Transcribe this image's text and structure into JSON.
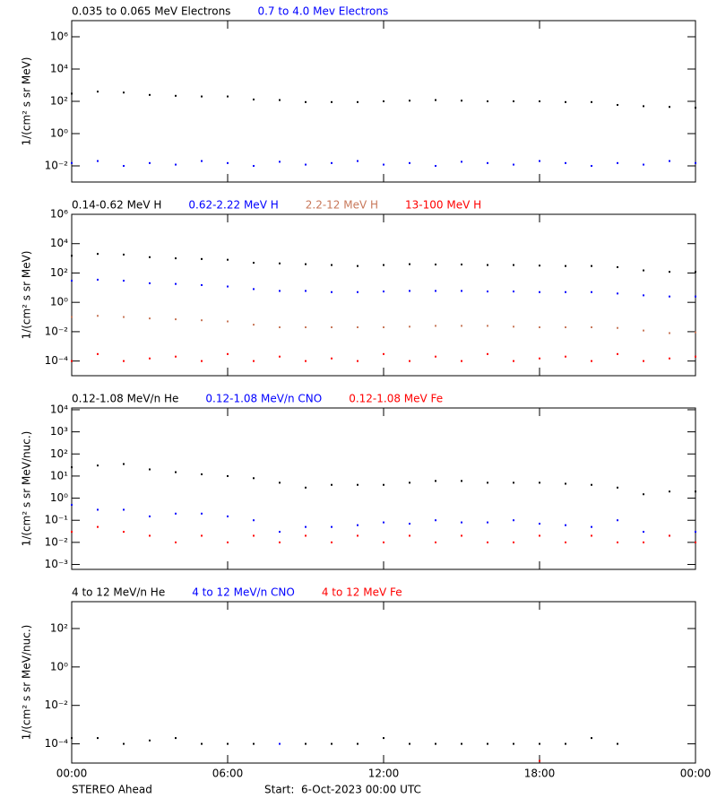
{
  "chart_data": [
    {
      "type": "scatter",
      "log_y": true,
      "ylabel": "1/(cm² s sr MeV)",
      "x": [
        0,
        1,
        2,
        3,
        4,
        5,
        6,
        7,
        8,
        9,
        10,
        11,
        12,
        13,
        14,
        15,
        16,
        17,
        18,
        19,
        20,
        21,
        22,
        23,
        24
      ],
      "xlim": [
        0,
        24
      ],
      "xticks": [
        0,
        6,
        12,
        18,
        24
      ],
      "ylim": [
        0.001,
        10000000
      ],
      "yticks": [
        {
          "value": 0.01,
          "label": "10⁻²"
        },
        {
          "value": 1,
          "label": "10⁰"
        },
        {
          "value": 100,
          "label": "10²"
        },
        {
          "value": 10000,
          "label": "10⁴"
        },
        {
          "value": 1000000,
          "label": "10⁶"
        }
      ],
      "series": [
        {
          "name": "0.035 to 0.065 MeV Electrons",
          "color": "#000000",
          "values": [
            300,
            400,
            350,
            250,
            220,
            200,
            200,
            130,
            120,
            90,
            90,
            90,
            100,
            110,
            120,
            110,
            100,
            100,
            100,
            90,
            90,
            60,
            50,
            45,
            40
          ]
        },
        {
          "name": "0.7 to 4.0 Mev Electrons",
          "color": "#0000ff",
          "values": [
            0.015,
            0.02,
            0.01,
            0.015,
            0.012,
            0.02,
            0.015,
            0.01,
            0.018,
            0.012,
            0.015,
            0.02,
            0.012,
            0.015,
            0.01,
            0.018,
            0.015,
            0.012,
            0.02,
            0.015,
            0.01,
            0.015,
            0.012,
            0.02,
            0.015
          ]
        }
      ]
    },
    {
      "type": "scatter",
      "log_y": true,
      "ylabel": "1/(cm² s sr MeV)",
      "x": [
        0,
        1,
        2,
        3,
        4,
        5,
        6,
        7,
        8,
        9,
        10,
        11,
        12,
        13,
        14,
        15,
        16,
        17,
        18,
        19,
        20,
        21,
        22,
        23,
        24
      ],
      "xlim": [
        0,
        24
      ],
      "xticks": [
        0,
        6,
        12,
        18,
        24
      ],
      "ylim": [
        1e-05,
        1000000
      ],
      "yticks": [
        {
          "value": 0.0001,
          "label": "10⁻⁴"
        },
        {
          "value": 0.01,
          "label": "10⁻²"
        },
        {
          "value": 1,
          "label": "10⁰"
        },
        {
          "value": 100,
          "label": "10²"
        },
        {
          "value": 10000,
          "label": "10⁴"
        },
        {
          "value": 1000000,
          "label": "10⁶"
        }
      ],
      "series": [
        {
          "name": "0.14-0.62 MeV H",
          "color": "#000000",
          "values": [
            1500,
            2000,
            1800,
            1200,
            1000,
            900,
            800,
            500,
            450,
            400,
            350,
            300,
            350,
            400,
            380,
            380,
            350,
            350,
            320,
            300,
            300,
            250,
            150,
            120,
            120
          ]
        },
        {
          "name": "0.62-2.22 MeV H",
          "color": "#0000ff",
          "values": [
            30,
            35,
            30,
            20,
            18,
            15,
            12,
            8,
            6,
            6,
            5,
            5,
            5.5,
            6,
            6,
            6,
            5.5,
            5.5,
            5,
            5,
            5,
            4,
            3,
            2.5,
            2.5
          ]
        },
        {
          "name": "2.2-12 MeV H",
          "color": "#c8785a",
          "values": [
            0.1,
            0.12,
            0.1,
            0.08,
            0.07,
            0.06,
            0.05,
            0.03,
            0.02,
            0.02,
            0.02,
            0.02,
            0.02,
            0.022,
            0.025,
            0.025,
            0.025,
            0.022,
            0.02,
            0.02,
            0.02,
            0.018,
            0.012,
            0.008,
            0.009
          ]
        },
        {
          "name": "13-100 MeV H",
          "color": "#ff0000",
          "values": [
            0.0001,
            0.0003,
            0.0001,
            0.00015,
            0.0002,
            0.0001,
            0.0003,
            0.0001,
            0.0002,
            0.0001,
            0.00015,
            0.0001,
            0.0003,
            0.0001,
            0.0002,
            0.0001,
            0.0003,
            0.0001,
            0.00015,
            0.0002,
            0.0001,
            0.0003,
            0.0001,
            0.00015,
            0.0002
          ]
        }
      ]
    },
    {
      "type": "scatter",
      "log_y": true,
      "ylabel": "1/(cm² s sr MeV/nuc.)",
      "x": [
        0,
        1,
        2,
        3,
        4,
        5,
        6,
        7,
        8,
        9,
        10,
        11,
        12,
        13,
        14,
        15,
        16,
        17,
        18,
        19,
        20,
        21,
        22,
        23,
        24
      ],
      "xlim": [
        0,
        24
      ],
      "xticks": [
        0,
        6,
        12,
        18,
        24
      ],
      "ylim": [
        0.0006,
        12000
      ],
      "yticks": [
        {
          "value": 0.001,
          "label": "10⁻³"
        },
        {
          "value": 0.01,
          "label": "10⁻²"
        },
        {
          "value": 0.1,
          "label": "10⁻¹"
        },
        {
          "value": 1,
          "label": "10⁰"
        },
        {
          "value": 10,
          "label": "10¹"
        },
        {
          "value": 100,
          "label": "10²"
        },
        {
          "value": 1000,
          "label": "10³"
        },
        {
          "value": 10000,
          "label": "10⁴"
        }
      ],
      "series": [
        {
          "name": "0.12-1.08 MeV/n He",
          "color": "#000000",
          "values": [
            25,
            30,
            35,
            20,
            15,
            12,
            10,
            8,
            5,
            3,
            4,
            4,
            4,
            5,
            6,
            6,
            5,
            5,
            5,
            4.5,
            4,
            3,
            1.5,
            2,
            2
          ]
        },
        {
          "name": "0.12-1.08 MeV/n CNO",
          "color": "#0000ff",
          "values": [
            0.5,
            0.3,
            0.3,
            0.15,
            0.2,
            0.2,
            0.15,
            0.1,
            0.03,
            0.05,
            0.05,
            0.06,
            0.08,
            0.07,
            0.1,
            0.08,
            0.08,
            0.1,
            0.07,
            0.06,
            0.05,
            0.1,
            0.03,
            0.02,
            0.03
          ]
        },
        {
          "name": "0.12-1.08 MeV Fe",
          "color": "#ff0000",
          "values": [
            0.03,
            0.05,
            0.03,
            0.02,
            0.01,
            0.02,
            0.01,
            0.02,
            0.01,
            0.02,
            0.01,
            0.02,
            0.01,
            0.02,
            0.01,
            0.02,
            0.01,
            0.01,
            0.02,
            0.01,
            0.02,
            0.01,
            0.01,
            0.02,
            0.01
          ]
        }
      ]
    },
    {
      "type": "scatter",
      "log_y": true,
      "ylabel": "1/(cm² s sr MeV/nuc.)",
      "x": [
        0,
        1,
        2,
        3,
        4,
        5,
        6,
        7,
        8,
        9,
        10,
        11,
        12,
        13,
        14,
        15,
        16,
        17,
        18,
        19,
        20,
        21,
        22,
        23,
        24
      ],
      "xlim": [
        0,
        24
      ],
      "xticks": [
        {
          "value": 0,
          "label": "00:00"
        },
        {
          "value": 6,
          "label": "06:00"
        },
        {
          "value": 12,
          "label": "12:00"
        },
        {
          "value": 18,
          "label": "18:00"
        },
        {
          "value": 24,
          "label": "00:00"
        }
      ],
      "ylim": [
        1e-05,
        2500
      ],
      "yticks": [
        {
          "value": 0.0001,
          "label": "10⁻⁴"
        },
        {
          "value": 0.01,
          "label": "10⁻²"
        },
        {
          "value": 1,
          "label": "10⁰"
        },
        {
          "value": 100,
          "label": "10²"
        }
      ],
      "series": [
        {
          "name": "4 to 12 MeV/n He",
          "color": "#000000",
          "values": [
            0.0002,
            0.0002,
            0.0001,
            0.00015,
            0.0002,
            0.0001,
            0.0001,
            0.0001,
            null,
            0.0001,
            0.0001,
            0.0001,
            0.0002,
            0.0001,
            0.0001,
            0.0001,
            0.0001,
            0.0001,
            0.0001,
            0.0001,
            0.0002,
            0.0001,
            null,
            null,
            null
          ]
        },
        {
          "name": "4 to 12 MeV/n CNO",
          "color": "#0000ff",
          "values": [
            null,
            null,
            null,
            null,
            null,
            null,
            null,
            null,
            0.0001,
            null,
            null,
            null,
            null,
            null,
            null,
            null,
            null,
            null,
            null,
            null,
            null,
            null,
            null,
            null,
            null
          ]
        },
        {
          "name": "4 to 12 MeV Fe",
          "color": "#ff0000",
          "values": [
            null,
            null,
            null,
            null,
            null,
            null,
            null,
            null,
            null,
            null,
            null,
            null,
            null,
            null,
            null,
            null,
            null,
            null,
            1.3e-05,
            null,
            null,
            null,
            null,
            null,
            null
          ]
        }
      ]
    }
  ],
  "footer": {
    "left": "STEREO Ahead",
    "start": "Start:  6-Oct-2023 00:00 UTC"
  }
}
